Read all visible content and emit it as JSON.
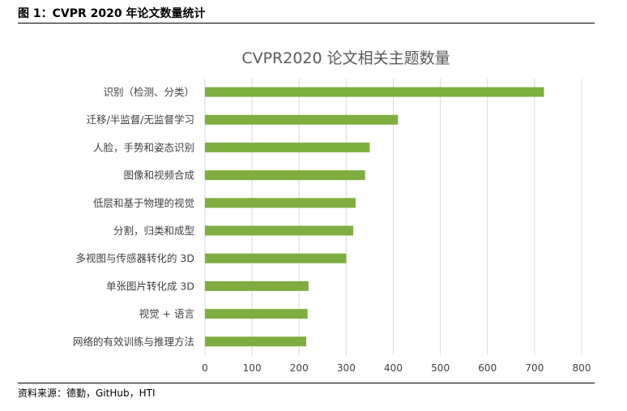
{
  "figure_caption": "图 1：CVPR 2020 年论文数量统计",
  "source_note": "资料来源：德勤，GitHub，HTI",
  "chart_data": {
    "type": "bar",
    "orientation": "horizontal",
    "title": "CVPR2020 论文相关主题数量",
    "categories": [
      "识别（检测、分类）",
      "迁移/半监督/无监督学习",
      "人脸，手势和姿态识别",
      "图像和视频合成",
      "低层和基于物理的视觉",
      "分割，归类和成型",
      "多视图与传感器转化的 3D",
      "单张图片转化成 3D",
      "视觉 + 语言",
      "网络的有效训练与推理方法"
    ],
    "values": [
      720,
      410,
      350,
      340,
      320,
      315,
      300,
      220,
      218,
      215
    ],
    "xlim": [
      0,
      800
    ],
    "xticks": [
      0,
      100,
      200,
      300,
      400,
      500,
      600,
      700,
      800
    ],
    "grid": true,
    "legend": false,
    "colors": {
      "bar": "#7dae3f",
      "grid": "#d9d9d9",
      "title": "#595959",
      "label": "#404040"
    }
  }
}
